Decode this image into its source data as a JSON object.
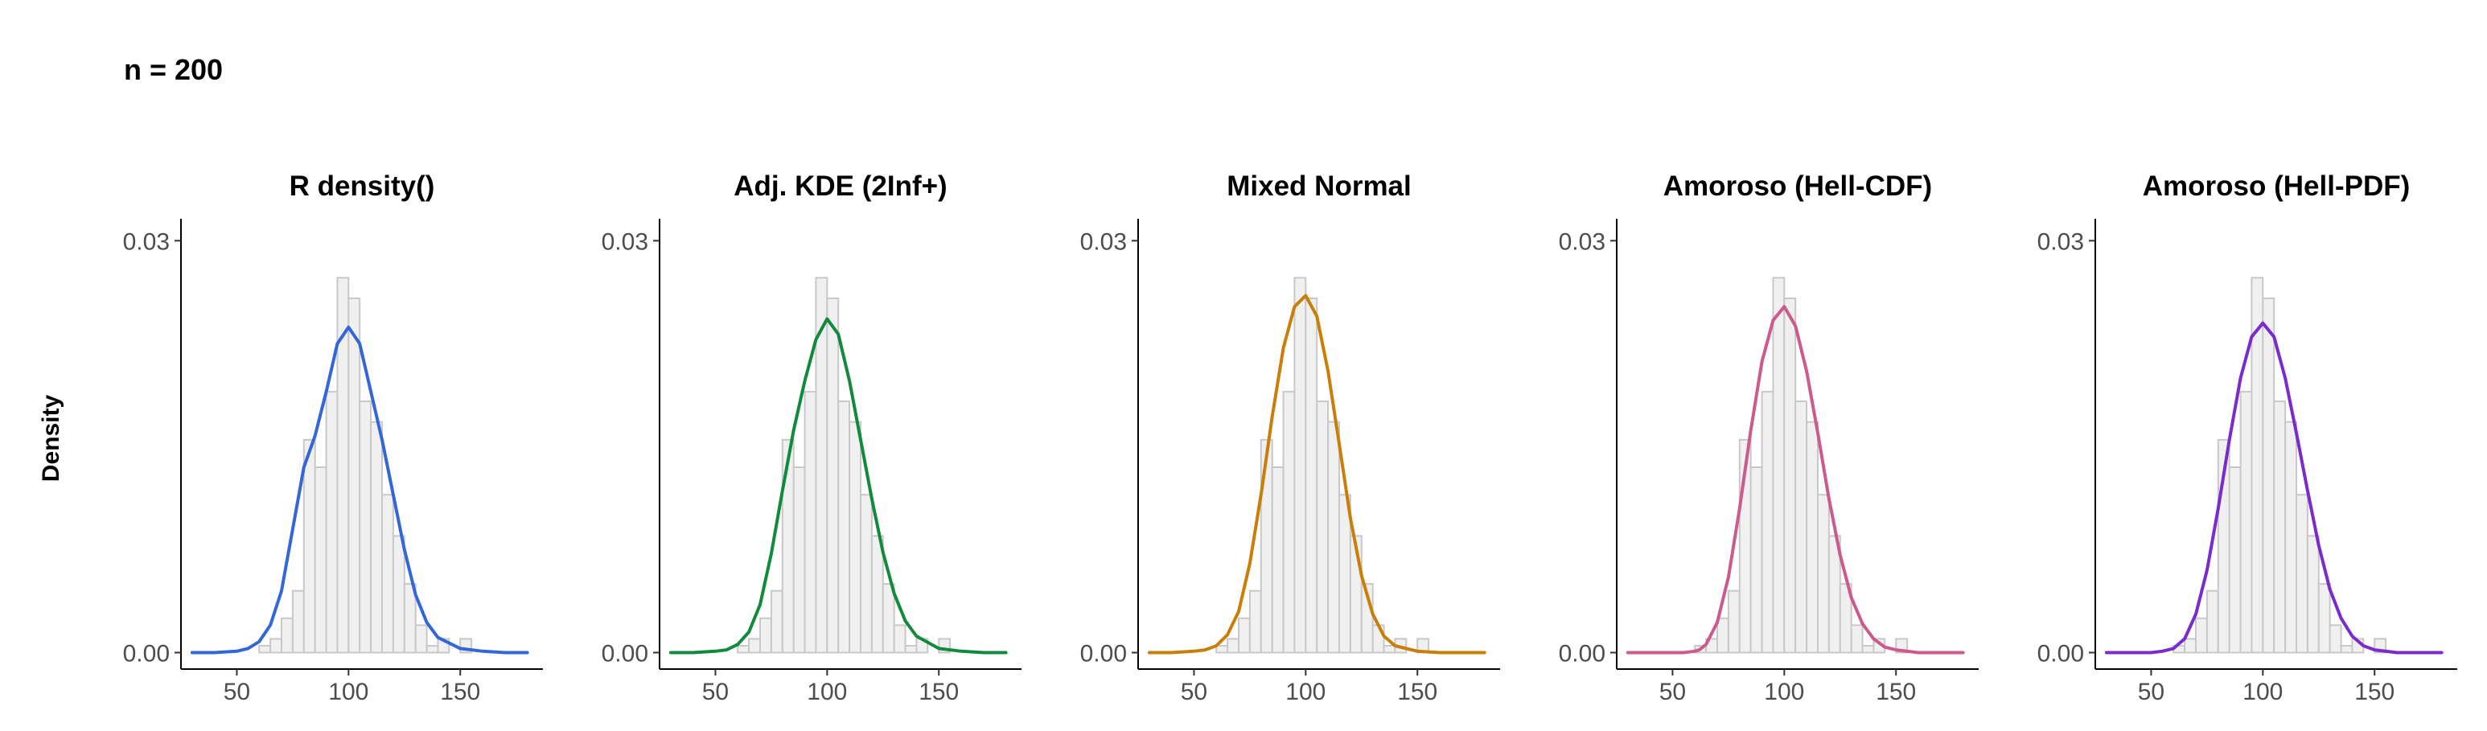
{
  "figure": {
    "title": "n = 200",
    "ylabel": "Density"
  },
  "chart_data": [
    {
      "type": "area",
      "title": "R density()",
      "xlabel": "",
      "ylabel": "Density",
      "xlim": [
        25,
        187
      ],
      "ylim": [
        -0.0012,
        0.0316
      ],
      "x_ticks": [
        50,
        100,
        150
      ],
      "x_tick_labels": [
        "50",
        "100",
        "150"
      ],
      "y_ticks": [
        0.0,
        0.03
      ],
      "y_tick_labels": [
        "0.00",
        "0.03"
      ],
      "grid": false,
      "curve_color": "#3366d6",
      "histogram": {
        "fill": "#f0f0f0",
        "stroke": "#c8c8c8",
        "bin_edges": [
          55,
          60,
          65,
          70,
          75,
          80,
          85,
          90,
          95,
          100,
          105,
          110,
          115,
          120,
          125,
          130,
          135,
          140,
          145,
          150,
          155,
          160
        ],
        "densities": [
          0,
          0.0005,
          0.001,
          0.0025,
          0.0045,
          0.0155,
          0.0135,
          0.019,
          0.0273,
          0.0258,
          0.0183,
          0.0168,
          0.0115,
          0.0085,
          0.005,
          0.002,
          0.0005,
          0.001,
          0,
          0.001,
          0,
          0
        ]
      },
      "curve": {
        "x": [
          30,
          40,
          50,
          55,
          60,
          65,
          70,
          75,
          80,
          85,
          90,
          95,
          100,
          105,
          110,
          115,
          120,
          125,
          130,
          135,
          140,
          150,
          160,
          170,
          180
        ],
        "y": [
          0,
          0,
          0.0001,
          0.0003,
          0.0008,
          0.002,
          0.0045,
          0.009,
          0.0135,
          0.0158,
          0.019,
          0.0225,
          0.0237,
          0.0225,
          0.019,
          0.0155,
          0.0115,
          0.0075,
          0.0042,
          0.0022,
          0.0011,
          0.0003,
          0.0001,
          0,
          0
        ]
      }
    },
    {
      "type": "area",
      "title": "Adj. KDE (2Inf+)",
      "xlabel": "",
      "ylabel": "Density",
      "xlim": [
        25,
        187
      ],
      "ylim": [
        -0.0012,
        0.0316
      ],
      "x_ticks": [
        50,
        100,
        150
      ],
      "x_tick_labels": [
        "50",
        "100",
        "150"
      ],
      "y_ticks": [
        0.0,
        0.03
      ],
      "y_tick_labels": [
        "0.00",
        "0.03"
      ],
      "grid": false,
      "curve_color": "#128a3e",
      "histogram": {
        "fill": "#f0f0f0",
        "stroke": "#c8c8c8",
        "bin_edges": [
          55,
          60,
          65,
          70,
          75,
          80,
          85,
          90,
          95,
          100,
          105,
          110,
          115,
          120,
          125,
          130,
          135,
          140,
          145,
          150,
          155,
          160
        ],
        "densities": [
          0,
          0.0005,
          0.001,
          0.0025,
          0.0045,
          0.0155,
          0.0135,
          0.019,
          0.0273,
          0.0258,
          0.0183,
          0.0168,
          0.0115,
          0.0085,
          0.005,
          0.002,
          0.0005,
          0.001,
          0,
          0.001,
          0,
          0
        ]
      },
      "curve": {
        "x": [
          30,
          40,
          50,
          55,
          60,
          65,
          70,
          75,
          80,
          85,
          90,
          95,
          100,
          105,
          110,
          115,
          120,
          125,
          130,
          135,
          140,
          150,
          160,
          170,
          180
        ],
        "y": [
          0,
          0,
          0.0001,
          0.0002,
          0.0006,
          0.0015,
          0.0035,
          0.0072,
          0.0118,
          0.0162,
          0.0198,
          0.0228,
          0.0243,
          0.0232,
          0.0198,
          0.0155,
          0.0112,
          0.0073,
          0.0043,
          0.0023,
          0.0012,
          0.0003,
          0.0001,
          0,
          0
        ]
      }
    },
    {
      "type": "area",
      "title": "Mixed Normal",
      "xlabel": "",
      "ylabel": "Density",
      "xlim": [
        25,
        187
      ],
      "ylim": [
        -0.0012,
        0.0316
      ],
      "x_ticks": [
        50,
        100,
        150
      ],
      "x_tick_labels": [
        "50",
        "100",
        "150"
      ],
      "y_ticks": [
        0.0,
        0.03
      ],
      "y_tick_labels": [
        "0.00",
        "0.03"
      ],
      "grid": false,
      "curve_color": "#c97f07",
      "histogram": {
        "fill": "#f0f0f0",
        "stroke": "#c8c8c8",
        "bin_edges": [
          55,
          60,
          65,
          70,
          75,
          80,
          85,
          90,
          95,
          100,
          105,
          110,
          115,
          120,
          125,
          130,
          135,
          140,
          145,
          150,
          155,
          160
        ],
        "densities": [
          0,
          0.0005,
          0.001,
          0.0025,
          0.0045,
          0.0155,
          0.0135,
          0.019,
          0.0273,
          0.0258,
          0.0183,
          0.0168,
          0.0115,
          0.0085,
          0.005,
          0.002,
          0.0005,
          0.001,
          0,
          0.001,
          0,
          0
        ]
      },
      "curve": {
        "x": [
          30,
          40,
          50,
          55,
          60,
          65,
          70,
          75,
          80,
          85,
          90,
          95,
          100,
          105,
          110,
          115,
          120,
          125,
          130,
          135,
          140,
          150,
          160,
          170,
          180
        ],
        "y": [
          0,
          0,
          0.0001,
          0.0002,
          0.0005,
          0.0013,
          0.003,
          0.0065,
          0.0115,
          0.0172,
          0.0222,
          0.0252,
          0.026,
          0.0245,
          0.0205,
          0.0152,
          0.0098,
          0.0056,
          0.0028,
          0.0012,
          0.0005,
          0.0001,
          0,
          0,
          0
        ]
      }
    },
    {
      "type": "area",
      "title": "Amoroso (Hell-CDF)",
      "xlabel": "",
      "ylabel": "Density",
      "xlim": [
        25,
        187
      ],
      "ylim": [
        -0.0012,
        0.0316
      ],
      "x_ticks": [
        50,
        100,
        150
      ],
      "x_tick_labels": [
        "50",
        "100",
        "150"
      ],
      "y_ticks": [
        0.0,
        0.03
      ],
      "y_tick_labels": [
        "0.00",
        "0.03"
      ],
      "grid": false,
      "curve_color": "#cc5a8c",
      "histogram": {
        "fill": "#f0f0f0",
        "stroke": "#c8c8c8",
        "bin_edges": [
          55,
          60,
          65,
          70,
          75,
          80,
          85,
          90,
          95,
          100,
          105,
          110,
          115,
          120,
          125,
          130,
          135,
          140,
          145,
          150,
          155,
          160
        ],
        "densities": [
          0,
          0.0005,
          0.001,
          0.0025,
          0.0045,
          0.0155,
          0.0135,
          0.019,
          0.0273,
          0.0258,
          0.0183,
          0.0168,
          0.0115,
          0.0085,
          0.005,
          0.002,
          0.0005,
          0.001,
          0,
          0.001,
          0,
          0
        ]
      },
      "curve": {
        "x": [
          30,
          40,
          50,
          55,
          60,
          62,
          65,
          70,
          75,
          80,
          85,
          90,
          95,
          100,
          105,
          110,
          115,
          120,
          125,
          130,
          135,
          140,
          145,
          150,
          160,
          170,
          180
        ],
        "y": [
          0,
          0,
          0,
          0,
          0.0001,
          0.0002,
          0.0006,
          0.0022,
          0.0055,
          0.0105,
          0.0162,
          0.0212,
          0.0242,
          0.0252,
          0.0238,
          0.0205,
          0.016,
          0.0112,
          0.0071,
          0.004,
          0.0021,
          0.001,
          0.0004,
          0.0002,
          0,
          0,
          0
        ]
      }
    },
    {
      "type": "area",
      "title": "Amoroso (Hell-PDF)",
      "xlabel": "",
      "ylabel": "Density",
      "xlim": [
        25,
        187
      ],
      "ylim": [
        -0.0012,
        0.0316
      ],
      "x_ticks": [
        50,
        100,
        150
      ],
      "x_tick_labels": [
        "50",
        "100",
        "150"
      ],
      "y_ticks": [
        0.0,
        0.03
      ],
      "y_tick_labels": [
        "0.00",
        "0.03"
      ],
      "grid": false,
      "curve_color": "#7b2bcc",
      "histogram": {
        "fill": "#f0f0f0",
        "stroke": "#c8c8c8",
        "bin_edges": [
          55,
          60,
          65,
          70,
          75,
          80,
          85,
          90,
          95,
          100,
          105,
          110,
          115,
          120,
          125,
          130,
          135,
          140,
          145,
          150,
          155,
          160
        ],
        "densities": [
          0,
          0.0005,
          0.001,
          0.0025,
          0.0045,
          0.0155,
          0.0135,
          0.019,
          0.0273,
          0.0258,
          0.0183,
          0.0168,
          0.0115,
          0.0085,
          0.005,
          0.002,
          0.0005,
          0.001,
          0,
          0.001,
          0,
          0
        ]
      },
      "curve": {
        "x": [
          30,
          40,
          50,
          55,
          60,
          65,
          70,
          75,
          80,
          85,
          90,
          95,
          100,
          105,
          110,
          115,
          120,
          125,
          130,
          135,
          140,
          145,
          150,
          160,
          170,
          180
        ],
        "y": [
          0,
          0,
          0,
          0.0001,
          0.0003,
          0.001,
          0.0028,
          0.006,
          0.0105,
          0.0155,
          0.02,
          0.023,
          0.024,
          0.023,
          0.02,
          0.016,
          0.0118,
          0.0078,
          0.0046,
          0.0025,
          0.0012,
          0.0005,
          0.0002,
          0,
          0,
          0
        ]
      }
    }
  ]
}
